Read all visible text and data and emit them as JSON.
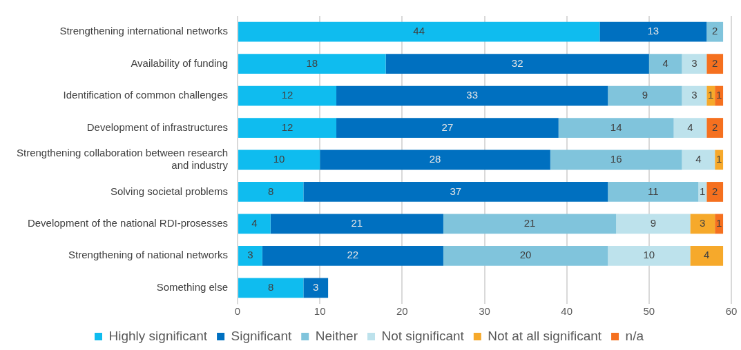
{
  "chart_data": {
    "type": "bar",
    "orientation": "horizontal",
    "stacked": true,
    "categories": [
      "Strengthening international networks",
      "Availability of funding",
      "Identification of common challenges",
      "Development of infrastructures",
      "Strengthening collaboration between research and industry",
      "Solving societal problems",
      "Development of the national RDI-prosesses",
      "Strengthening of national networks",
      "Something else"
    ],
    "series": [
      {
        "name": "Highly significant",
        "color": "#0fbcef",
        "values": [
          44,
          18,
          12,
          12,
          10,
          8,
          4,
          3,
          8
        ]
      },
      {
        "name": "Significant",
        "color": "#0070c0",
        "values": [
          13,
          32,
          33,
          27,
          28,
          37,
          21,
          22,
          3
        ]
      },
      {
        "name": "Neither",
        "color": "#80c4dc",
        "values": [
          2,
          4,
          9,
          14,
          16,
          11,
          21,
          20,
          null
        ]
      },
      {
        "name": "Not significant",
        "color": "#bde2ec",
        "values": [
          null,
          3,
          3,
          4,
          4,
          1,
          9,
          10,
          null
        ]
      },
      {
        "name": "Not at all significant",
        "color": "#f6a92b",
        "values": [
          null,
          null,
          1,
          null,
          1,
          null,
          3,
          4,
          null
        ]
      },
      {
        "name": "n/a",
        "color": "#f5701f",
        "values": [
          null,
          2,
          1,
          2,
          null,
          2,
          1,
          null,
          null
        ]
      }
    ],
    "xlim": [
      0,
      60
    ],
    "xticks": [
      0,
      10,
      20,
      30,
      40,
      50,
      60
    ],
    "grid": "x",
    "legend": "bottom",
    "data_labels": true
  }
}
